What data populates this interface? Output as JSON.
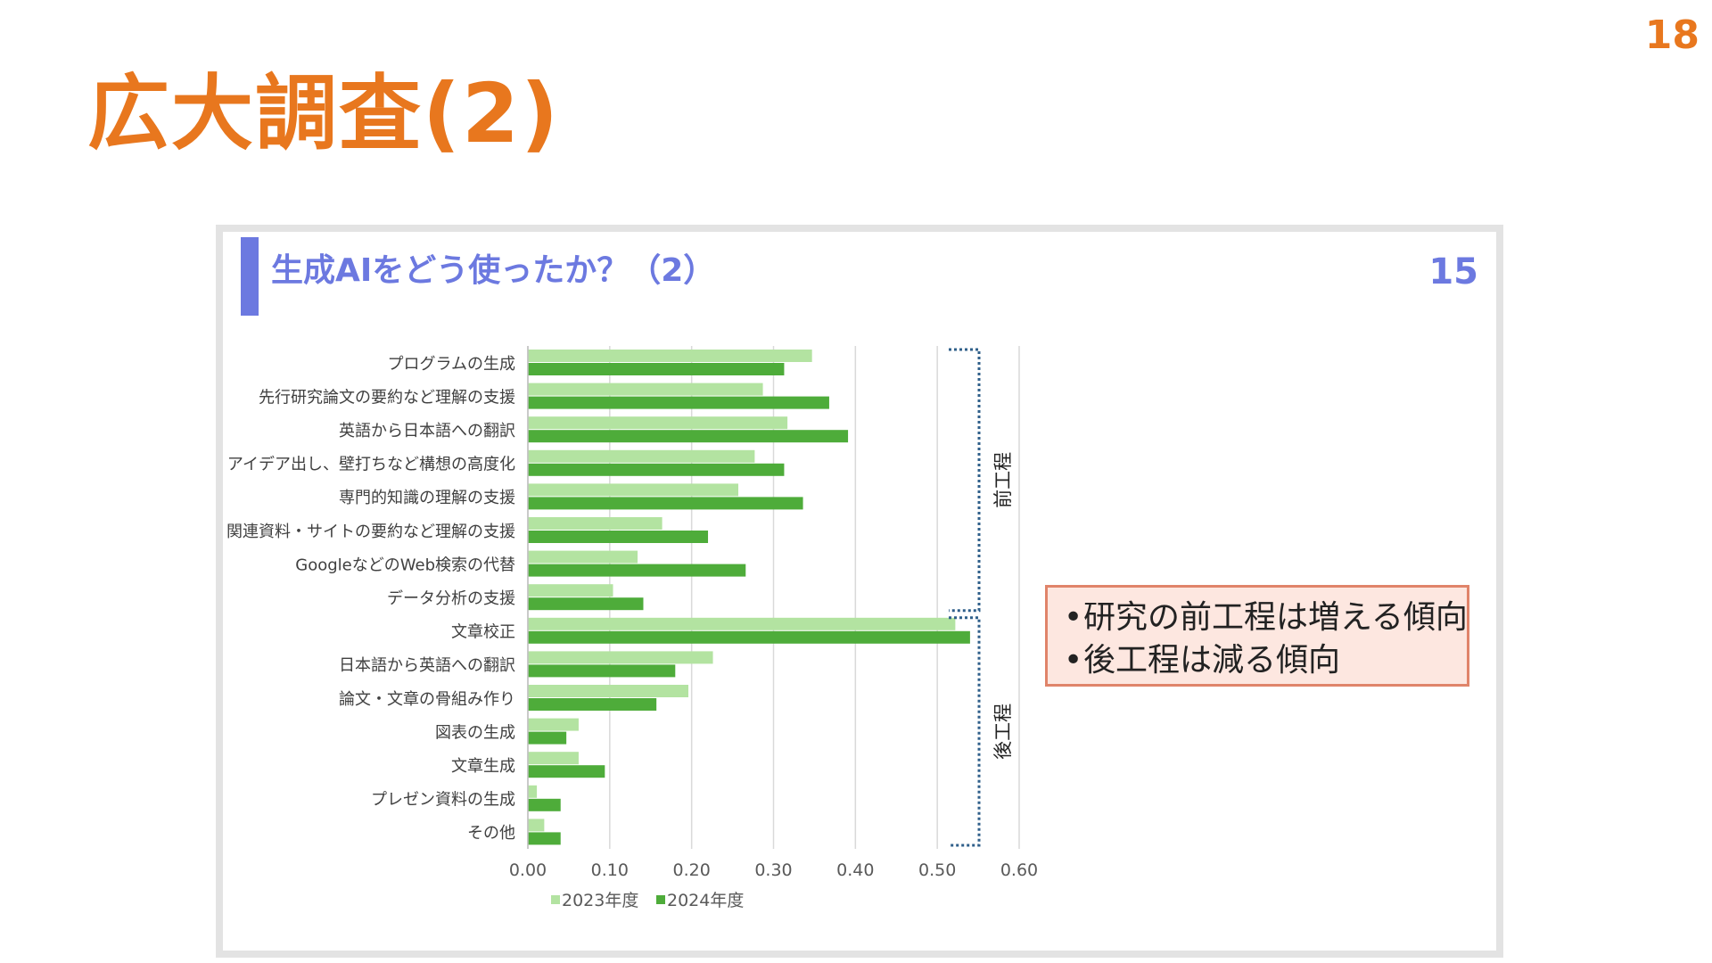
{
  "page_number": "18",
  "slide_title": "広大調査(2)",
  "embedded_slide": {
    "title": "生成AIをどう使ったか？（2）",
    "page_number": "15"
  },
  "colors": {
    "title_orange": "#E8771E",
    "embedded_title_blue": "#6C79E0",
    "series_2023": "#B3E3A1",
    "series_2024": "#4EAC3A",
    "bracket_blue": "#2F5F8A"
  },
  "chart_data": {
    "type": "bar",
    "orientation": "horizontal",
    "categories": [
      "プログラムの生成",
      "先行研究論文の要約など理解の支援",
      "英語から日本語への翻訳",
      "アイデア出し、壁打ちなど構想の高度化",
      "専門的知識の理解の支援",
      "関連資料・サイトの要約など理解の支援",
      "GoogleなどのWeb検索の代替",
      "データ分析の支援",
      "文章校正",
      "日本語から英語への翻訳",
      "論文・文章の骨組み作り",
      "図表の生成",
      "文章生成",
      "プレゼン資料の生成",
      "その他"
    ],
    "series": [
      {
        "name": "2023年度",
        "values": [
          0.347,
          0.287,
          0.317,
          0.277,
          0.257,
          0.164,
          0.134,
          0.104,
          0.522,
          0.226,
          0.196,
          0.062,
          0.062,
          0.011,
          0.02
        ]
      },
      {
        "name": "2024年度",
        "values": [
          0.313,
          0.368,
          0.391,
          0.313,
          0.336,
          0.22,
          0.266,
          0.141,
          0.54,
          0.18,
          0.157,
          0.047,
          0.094,
          0.04,
          0.04
        ]
      }
    ],
    "xlim": [
      0,
      0.6
    ],
    "xticks": [
      "0.00",
      "0.10",
      "0.20",
      "0.30",
      "0.40",
      "0.50",
      "0.60"
    ],
    "grid": true,
    "legend": "bottom",
    "groups": [
      {
        "label": "前工程",
        "from": 0,
        "to": 7
      },
      {
        "label": "後工程",
        "from": 8,
        "to": 14
      }
    ]
  },
  "notes": [
    "研究の前工程は増える傾向",
    "後工程は減る傾向"
  ],
  "note_bullet": "•"
}
